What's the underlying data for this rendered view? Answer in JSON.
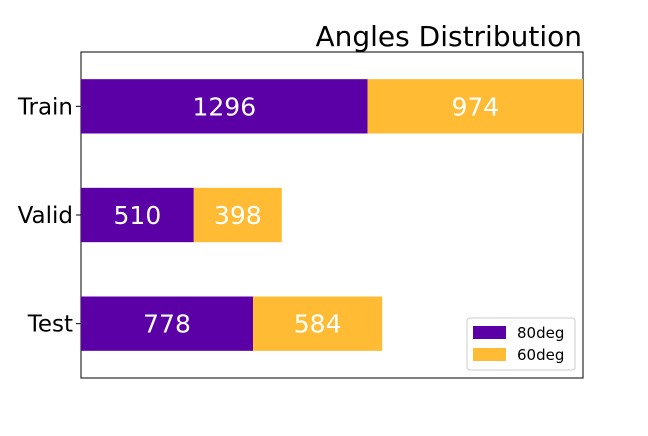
{
  "chart_data": {
    "type": "bar",
    "orientation": "horizontal",
    "stacked": true,
    "title": "Angles Distribution",
    "xlabel": "",
    "ylabel": "",
    "categories": [
      "Train",
      "Valid",
      "Test"
    ],
    "series": [
      {
        "name": "80deg",
        "values": [
          1296,
          510,
          778
        ],
        "color": "#5b00a6"
      },
      {
        "name": "60deg",
        "values": [
          974,
          398,
          584
        ],
        "color": "#ffbb33"
      }
    ],
    "xlim": [
      0,
      2270
    ],
    "x_ticks_visible": false,
    "grid": false,
    "legend_position": "lower-right",
    "value_label_color": "#ffffff"
  }
}
